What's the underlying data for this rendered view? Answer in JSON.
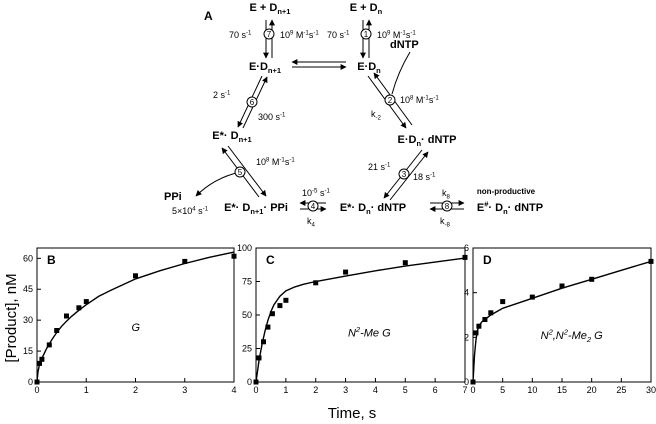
{
  "scheme": {
    "panel": "A",
    "species": {
      "e_dn1_top": "E + D<sub>n+1</sub>",
      "e_dn_top": "E + D<sub>n</sub>",
      "e_dn1": "E·D<sub>n+1</sub>",
      "e_dn": "E·D<sub>n</sub>",
      "e_dn_dntp": "E·D<sub>n</sub>· dNTP",
      "estar_dn1": "E*· D<sub>n+1</sub>",
      "estar_dn1_ppi": "E*· D<sub>n+1</sub>· PPi",
      "estar_dn_dntp": "E*· D<sub>n</sub>· dNTP",
      "ehash_dn_dntp": "E<sup>#</sup>· D<sub>n</sub>· dNTP",
      "dntp": "dNTP",
      "ppi": "PPi",
      "nonproductive": "non-productive"
    },
    "steps": [
      "1",
      "2",
      "3",
      "4",
      "5",
      "6",
      "7",
      "8"
    ],
    "rates": {
      "s7_rev": "70 s<sup>-1</sup>",
      "s7_fwd": "10<sup>9</sup> M<sup>-1</sup>s<sup>-1</sup>",
      "s1_rev": "70 s<sup>-1</sup>",
      "s1_fwd": "10<sup>9</sup> M<sup>-1</sup>s<sup>-1</sup>",
      "s6_a": "2 s<sup>-1</sup>",
      "s6_b": "300 s<sup>-1</sup>",
      "s2_rev": "k<sub>-2</sub>",
      "s2_fwd": "10<sup>8</sup> M<sup>-1</sup>s<sup>-1</sup>",
      "s5_a": "10<sup>8</sup> M<sup>-1</sup>s<sup>-1</sup>",
      "s5_b": "5×10<sup>4</sup> s<sup>-1</sup>",
      "s3_a": "21 s<sup>-1</sup>",
      "s3_b": "18 s<sup>-1</sup>",
      "s4_top": "10<sup>-5</sup> s<sup>-1</sup>",
      "s4_bot": "k<sub>4</sub>",
      "s8_top": "k<sub>8</sub>",
      "s8_bot": "k<sub>-8</sub>"
    }
  },
  "axis_texts": {
    "ylabel": "[Product], nM",
    "xlabel": "Time, s"
  },
  "chart_data": [
    {
      "type": "scatter",
      "panel": "B",
      "annotation": "G",
      "xlim": [
        0,
        4
      ],
      "ylim": [
        0,
        65
      ],
      "xticks": [
        0,
        1,
        2,
        3,
        4
      ],
      "yticks": [
        0,
        15,
        30,
        45,
        60
      ],
      "points": [
        [
          0,
          0
        ],
        [
          0.05,
          9
        ],
        [
          0.1,
          11
        ],
        [
          0.25,
          18
        ],
        [
          0.4,
          25
        ],
        [
          0.6,
          32
        ],
        [
          0.85,
          36
        ],
        [
          1.0,
          39
        ],
        [
          2.0,
          51.5
        ],
        [
          3.0,
          58.5
        ],
        [
          4.0,
          61
        ]
      ],
      "fit": [
        [
          0,
          0
        ],
        [
          0.02,
          5
        ],
        [
          0.05,
          8.5
        ],
        [
          0.1,
          11.5
        ],
        [
          0.2,
          16.5
        ],
        [
          0.3,
          20.5
        ],
        [
          0.4,
          24
        ],
        [
          0.5,
          27
        ],
        [
          0.6,
          29.5
        ],
        [
          0.7,
          31.8
        ],
        [
          0.85,
          34.8
        ],
        [
          1.0,
          37.5
        ],
        [
          1.25,
          41.5
        ],
        [
          1.5,
          44.5
        ],
        [
          2.0,
          50
        ],
        [
          2.5,
          54
        ],
        [
          3.0,
          57.5
        ],
        [
          3.5,
          60.5
        ],
        [
          4.0,
          63
        ]
      ]
    },
    {
      "type": "scatter",
      "panel": "C",
      "annotation": "N<sup>2</sup>-Me G",
      "xlim": [
        0,
        7
      ],
      "ylim": [
        0,
        100
      ],
      "xticks": [
        0,
        1,
        2,
        3,
        4,
        5,
        6,
        7
      ],
      "yticks": [
        0,
        25,
        50,
        75,
        100
      ],
      "points": [
        [
          0,
          0
        ],
        [
          0.1,
          18
        ],
        [
          0.25,
          30
        ],
        [
          0.4,
          41
        ],
        [
          0.55,
          51
        ],
        [
          0.8,
          57
        ],
        [
          1.0,
          61
        ],
        [
          2.0,
          74
        ],
        [
          3.0,
          82
        ],
        [
          5.0,
          89
        ],
        [
          7.0,
          93
        ]
      ],
      "fit": [
        [
          0,
          0
        ],
        [
          0.05,
          8
        ],
        [
          0.1,
          16
        ],
        [
          0.2,
          28
        ],
        [
          0.3,
          38
        ],
        [
          0.4,
          46
        ],
        [
          0.5,
          52.5
        ],
        [
          0.6,
          57.5
        ],
        [
          0.8,
          64
        ],
        [
          1.0,
          68
        ],
        [
          1.3,
          71
        ],
        [
          1.6,
          73
        ],
        [
          2.0,
          75
        ],
        [
          3.0,
          79
        ],
        [
          4.0,
          83
        ],
        [
          5.0,
          86.5
        ],
        [
          6.0,
          89.5
        ],
        [
          7.0,
          92.5
        ]
      ]
    },
    {
      "type": "scatter",
      "panel": "D",
      "annotation": "N<sup>2</sup>,N<sup>2</sup>-Me<sub>2</sub> G",
      "xlim": [
        0,
        30
      ],
      "ylim": [
        0,
        6
      ],
      "xticks": [
        0,
        5,
        10,
        15,
        20,
        25,
        30
      ],
      "yticks": [
        0,
        2,
        4,
        6
      ],
      "points": [
        [
          0,
          0
        ],
        [
          0.5,
          2.2
        ],
        [
          1.0,
          2.5
        ],
        [
          2.0,
          2.8
        ],
        [
          3.0,
          3.1
        ],
        [
          5.0,
          3.6
        ],
        [
          10.0,
          3.8
        ],
        [
          15.0,
          4.3
        ],
        [
          20.0,
          4.6
        ],
        [
          30.0,
          5.4
        ]
      ],
      "fit": [
        [
          0,
          0
        ],
        [
          0.25,
          1.2
        ],
        [
          0.5,
          1.9
        ],
        [
          0.75,
          2.3
        ],
        [
          1.0,
          2.5
        ],
        [
          1.5,
          2.7
        ],
        [
          2.0,
          2.8
        ],
        [
          3.0,
          3.0
        ],
        [
          5.0,
          3.3
        ],
        [
          10.0,
          3.75
        ],
        [
          15.0,
          4.2
        ],
        [
          20.0,
          4.6
        ],
        [
          25.0,
          5.0
        ],
        [
          30.0,
          5.4
        ]
      ]
    }
  ]
}
